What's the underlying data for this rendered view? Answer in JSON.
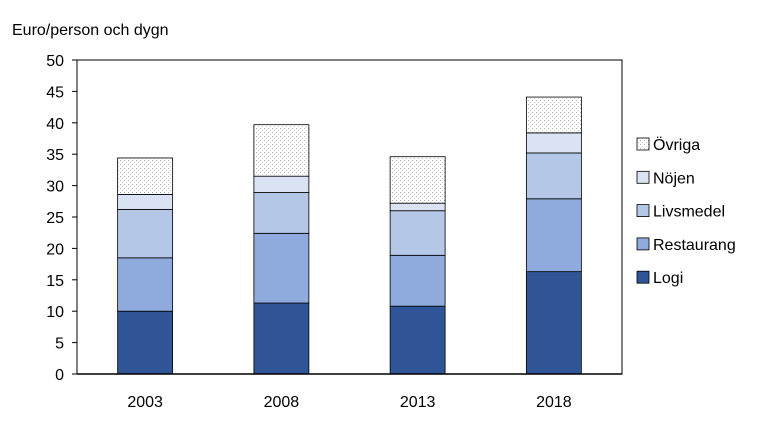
{
  "chart_data": {
    "type": "bar",
    "stacked": true,
    "title": "",
    "ylabel": "Euro/person och dygn",
    "xlabel": "",
    "categories": [
      "2003",
      "2008",
      "2013",
      "2018"
    ],
    "ylim": [
      0,
      50
    ],
    "yticks": [
      0,
      5,
      10,
      15,
      20,
      25,
      30,
      35,
      40,
      45,
      50
    ],
    "grid": false,
    "legend_position": "right",
    "series": [
      {
        "name": "Logi",
        "color": "#2f5597",
        "pattern": "solid",
        "values": [
          10.0,
          11.3,
          10.8,
          16.3
        ]
      },
      {
        "name": "Restaurang",
        "color": "#8faadc",
        "pattern": "solid",
        "values": [
          8.5,
          11.1,
          8.1,
          11.6
        ]
      },
      {
        "name": "Livsmedel",
        "color": "#b4c7e7",
        "pattern": "solid",
        "values": [
          7.7,
          6.5,
          7.1,
          7.3
        ]
      },
      {
        "name": "Nöjen",
        "color": "#dae3f3",
        "pattern": "solid",
        "values": [
          2.4,
          2.6,
          1.2,
          3.2
        ]
      },
      {
        "name": "Övriga",
        "color": "#ffffff",
        "pattern": "dotted",
        "values": [
          5.8,
          8.2,
          7.4,
          5.7
        ]
      }
    ]
  }
}
